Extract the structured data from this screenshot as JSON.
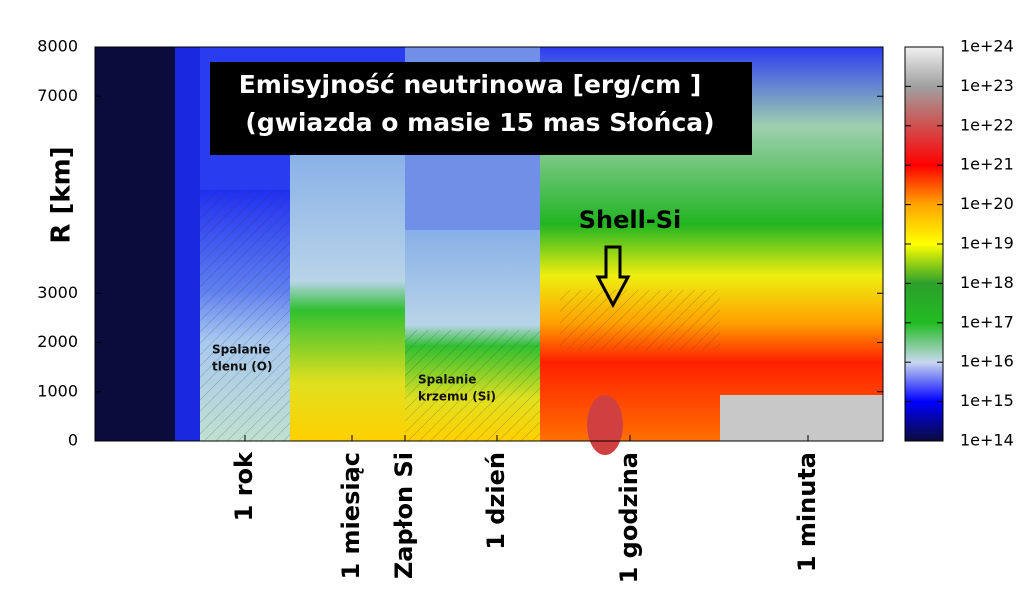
{
  "chart_data": {
    "type": "heatmap",
    "title": "Emisyjność neutrinowa [erg/cm ]",
    "subtitle": "(gwiazda o masie 15 mas Słońca)",
    "ylabel": "R [km]",
    "ylim": [
      0,
      8000
    ],
    "yticks": [
      0,
      1000,
      2000,
      3000,
      7000,
      8000
    ],
    "categories": [
      "1 rok",
      "1 miesiąc",
      "Zapłon Si",
      "1 dzień",
      "1 godzina",
      "1 minuta"
    ],
    "zlim": [
      100000000000000.0,
      1e+24
    ],
    "zscale": "log",
    "zticks": [
      {
        "value": 100000000000000.0,
        "label": "1e+14"
      },
      {
        "value": 1000000000000000.0,
        "label": "1e+15"
      },
      {
        "value": 1e+16,
        "label": "1e+16"
      },
      {
        "value": 1e+17,
        "label": "1e+17"
      },
      {
        "value": 1e+18,
        "label": "1e+18"
      },
      {
        "value": 1e+19,
        "label": "1e+19"
      },
      {
        "value": 1e+20,
        "label": "1e+20"
      },
      {
        "value": 1e+21,
        "label": "1e+21"
      },
      {
        "value": 1e+22,
        "label": "1e+22"
      },
      {
        "value": 1e+23,
        "label": "1e+23"
      },
      {
        "value": 1e+24,
        "label": "1e+24"
      }
    ],
    "colormap": [
      "#0b0b3c",
      "#0000ff",
      "#c8d8ee",
      "#22bb22",
      "#2ca02c",
      "#ffff00",
      "#ffa500",
      "#ff0000",
      "#d05050",
      "#a0a0a0",
      "#f0f0f0"
    ],
    "annotations": [
      {
        "text": "Shell-Si"
      },
      {
        "text": [
          "Spalanie",
          "tlenu (O)"
        ]
      },
      {
        "text": [
          "Spalanie",
          "krzemu (Si)"
        ]
      }
    ]
  }
}
